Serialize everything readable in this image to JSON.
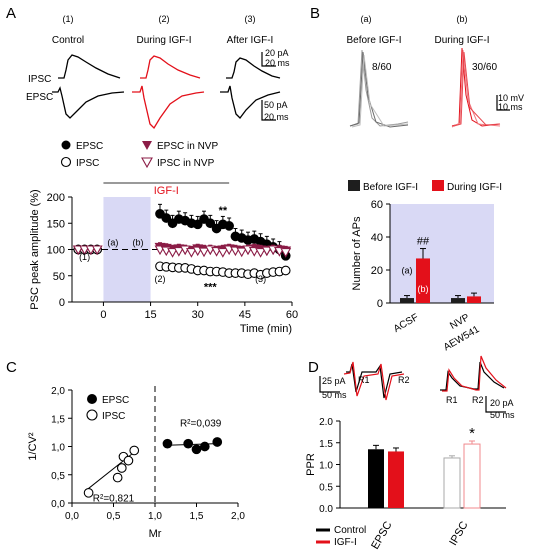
{
  "colors": {
    "black": "#000000",
    "red": "#e3101a",
    "purple_fill": "#d9d9f5",
    "nvp": "#8b1c46",
    "gray": "#9a9a9a"
  },
  "panels": {
    "a": "A",
    "b": "B",
    "c": "C",
    "d": "D"
  },
  "panel_a": {
    "conditions": [
      {
        "num": "(1)",
        "label": "Control"
      },
      {
        "num": "(2)",
        "label": "During IGF-I"
      },
      {
        "num": "(3)",
        "label": "After IGF-I"
      }
    ],
    "trace_labels": {
      "ipsc": "IPSC",
      "epsc": "EPSC"
    },
    "scalebars": {
      "top_pa": "20 pA",
      "top_ms": "20 ms",
      "bottom_pa": "50 pA",
      "bottom_ms": "20 ms"
    },
    "legend": {
      "epsc": "EPSC",
      "ipsc": "IPSC",
      "epsc_nvp": "EPSC in NVP",
      "ipsc_nvp": "IPSC in NVP"
    }
  },
  "panel_b": {
    "traces": [
      {
        "title": "(a)",
        "label": "Before IGF-I",
        "count": "8/60"
      },
      {
        "title": "(b)",
        "label": "During IGF-I",
        "count": "30/60"
      }
    ],
    "scalebar": {
      "mv": "10 mV",
      "ms": "10 ms"
    }
  },
  "panel_d": {
    "trace_labels": {
      "r1": "R1",
      "r2": "R2"
    },
    "scalebars": {
      "left_pa": "25 pA",
      "left_ms": "50 ms",
      "right_pa": "20 pA",
      "right_ms": "50 ms"
    },
    "legend": {
      "control": "Control",
      "igf": "IGF-I"
    }
  },
  "chart_data": [
    {
      "id": "time-course",
      "type": "scatter",
      "xlabel": "Time (min)",
      "ylabel": "PSC peak amplitude (%)",
      "xlim": [
        -10,
        60
      ],
      "ylim": [
        0,
        200
      ],
      "xticks": [
        "0",
        "15",
        "30",
        "45",
        "60"
      ],
      "yticks": [
        "0",
        "50",
        "100",
        "150",
        "200"
      ],
      "shaded_range": [
        0,
        15
      ],
      "bar_label": "IGF-I",
      "bar_range": [
        0,
        40
      ],
      "annotations": [
        {
          "text": "(a)",
          "x": 3,
          "y": 108
        },
        {
          "text": "(b)",
          "x": 11,
          "y": 108
        },
        {
          "text": "(1)",
          "x": -6,
          "y": 80
        },
        {
          "text": "(2)",
          "x": 18,
          "y": 38
        },
        {
          "text": "(3)",
          "x": 50,
          "y": 38
        },
        {
          "text": "**",
          "x": 38,
          "y": 168
        },
        {
          "text": "***",
          "x": 34,
          "y": 22
        }
      ],
      "series": [
        {
          "name": "EPSC",
          "marker": "filled-circle",
          "x": [
            -8,
            -6,
            -4,
            -2,
            18,
            20,
            22,
            24,
            26,
            28,
            30,
            32,
            34,
            36,
            38,
            40,
            42,
            44,
            46,
            48,
            50,
            52,
            54,
            56,
            58
          ],
          "y": [
            100,
            100,
            100,
            100,
            168,
            160,
            150,
            158,
            155,
            150,
            148,
            158,
            150,
            140,
            148,
            145,
            125,
            122,
            118,
            120,
            115,
            110,
            105,
            100,
            88
          ],
          "err": [
            5,
            5,
            5,
            5,
            18,
            15,
            15,
            15,
            15,
            15,
            15,
            15,
            15,
            15,
            15,
            15,
            15,
            15,
            15,
            15,
            15,
            15,
            15,
            15,
            12
          ]
        },
        {
          "name": "IPSC",
          "marker": "open-circle",
          "x": [
            -8,
            -6,
            -4,
            -2,
            18,
            20,
            22,
            24,
            26,
            28,
            30,
            32,
            34,
            36,
            38,
            40,
            42,
            44,
            46,
            48,
            50,
            52,
            54,
            56,
            58
          ],
          "y": [
            100,
            100,
            100,
            100,
            68,
            67,
            66,
            65,
            65,
            63,
            60,
            60,
            58,
            58,
            57,
            55,
            55,
            55,
            53,
            55,
            52,
            55,
            57,
            58,
            60
          ],
          "err": [
            4,
            4,
            4,
            4,
            6,
            6,
            6,
            6,
            6,
            6,
            6,
            6,
            6,
            6,
            6,
            6,
            6,
            6,
            6,
            6,
            6,
            6,
            6,
            6,
            6
          ]
        },
        {
          "name": "EPSC in NVP",
          "marker": "filled-triangle-down",
          "x": [
            -8,
            -6,
            -4,
            -2,
            18,
            20,
            22,
            24,
            26,
            28,
            30,
            32,
            34,
            36,
            38,
            40,
            42,
            44,
            46,
            48,
            50,
            52,
            54,
            56,
            58
          ],
          "y": [
            100,
            100,
            100,
            100,
            105,
            103,
            100,
            102,
            100,
            98,
            102,
            100,
            100,
            98,
            100,
            102,
            100,
            98,
            100,
            102,
            100,
            98,
            100,
            100,
            98
          ],
          "err": [
            4,
            4,
            4,
            4,
            8,
            8,
            8,
            8,
            8,
            8,
            8,
            8,
            8,
            8,
            8,
            8,
            8,
            8,
            8,
            8,
            8,
            8,
            8,
            8,
            8
          ]
        },
        {
          "name": "IPSC in NVP",
          "marker": "open-triangle-down",
          "x": [
            -8,
            -6,
            -4,
            -2,
            18,
            20,
            22,
            24,
            26,
            28,
            30,
            32,
            34,
            36,
            38,
            40,
            42,
            44,
            46,
            48,
            50,
            52,
            54,
            56,
            58
          ],
          "y": [
            100,
            100,
            100,
            100,
            100,
            98,
            95,
            97,
            100,
            95,
            98,
            96,
            100,
            97,
            95,
            100,
            98,
            96,
            100,
            97,
            95,
            98,
            100,
            97,
            95
          ],
          "err": [
            4,
            4,
            4,
            4,
            8,
            8,
            8,
            8,
            8,
            8,
            8,
            8,
            8,
            8,
            8,
            8,
            8,
            8,
            8,
            8,
            8,
            8,
            8,
            8,
            8
          ]
        }
      ]
    },
    {
      "id": "ap-count",
      "type": "bar",
      "ylabel": "Number of APs",
      "ylim": [
        0,
        60
      ],
      "yticks": [
        "0",
        "20",
        "40",
        "60"
      ],
      "categories": [
        "ACSF",
        "NVP AEW541"
      ],
      "legend": [
        "Before IGF-I",
        "During IGF-I"
      ],
      "series": [
        {
          "name": "Before IGF-I",
          "values": [
            3,
            3
          ],
          "err": [
            1.5,
            1.5
          ]
        },
        {
          "name": "During IGF-I",
          "values": [
            27,
            4
          ],
          "err": [
            6,
            2
          ]
        }
      ],
      "annotations": [
        {
          "text": "(a)",
          "bar": 0
        },
        {
          "text": "(b)",
          "bar": 1
        },
        {
          "text": "##",
          "bar": 1
        }
      ]
    },
    {
      "id": "cv-analysis",
      "type": "scatter",
      "xlabel": "Mr",
      "ylabel": "1/CV²",
      "xlim": [
        0,
        2
      ],
      "ylim": [
        0,
        2
      ],
      "xticks": [
        "0,0",
        "0,5",
        "1,0",
        "1,5",
        "2,0"
      ],
      "yticks": [
        "0,0",
        "0,5",
        "1,0",
        "1,5",
        "2,0"
      ],
      "legend": [
        "EPSC",
        "IPSC"
      ],
      "series": [
        {
          "name": "EPSC",
          "marker": "filled-circle",
          "x": [
            1.15,
            1.4,
            1.5,
            1.6,
            1.75
          ],
          "y": [
            1.05,
            1.05,
            0.95,
            1.0,
            1.08
          ],
          "fit": {
            "x": [
              1.1,
              1.75
            ],
            "y": [
              1.02,
              1.05
            ]
          },
          "r2": "R²=0,039"
        },
        {
          "name": "IPSC",
          "marker": "open-circle",
          "x": [
            0.2,
            0.55,
            0.6,
            0.62,
            0.68,
            0.75
          ],
          "y": [
            0.18,
            0.45,
            0.62,
            0.82,
            0.75,
            0.93
          ],
          "fit": {
            "x": [
              0.15,
              0.75
            ],
            "y": [
              0.2,
              0.9
            ]
          },
          "r2": "R²=0,821"
        }
      ]
    },
    {
      "id": "ppr",
      "type": "bar",
      "ylabel": "PPR",
      "ylim": [
        0,
        2
      ],
      "yticks": [
        "0.0",
        "0.5",
        "1.0",
        "1.5",
        "2.0"
      ],
      "categories": [
        "EPSC",
        "IPSC"
      ],
      "series": [
        {
          "name": "Control",
          "values": [
            1.35,
            1.15
          ],
          "err": [
            0.09,
            0.05
          ]
        },
        {
          "name": "IGF-I",
          "values": [
            1.3,
            1.47
          ],
          "err": [
            0.08,
            0.07
          ]
        }
      ],
      "annotations": [
        {
          "text": "*",
          "bar": 3
        }
      ]
    }
  ]
}
